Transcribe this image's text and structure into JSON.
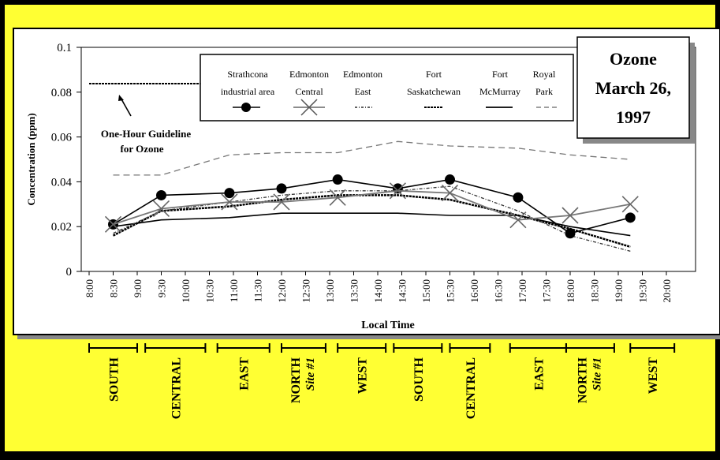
{
  "title_box": {
    "line1": "Ozone",
    "line2": "March  26,",
    "line3": "1997"
  },
  "guideline": {
    "label_line1": "One-Hour Guideline",
    "label_line2": "for Ozone",
    "value": 0.082
  },
  "legend_entries": [
    {
      "line1": "Strathcona",
      "line2": "industrial area"
    },
    {
      "line1": "Edmonton",
      "line2": "Central"
    },
    {
      "line1": "Edmonton",
      "line2": "East"
    },
    {
      "line1": "Fort",
      "line2": "Saskatchewan"
    },
    {
      "line1": "Fort",
      "line2": "McMurray"
    },
    {
      "line1": "Royal",
      "line2": "Park"
    }
  ],
  "chart_data": {
    "type": "line",
    "ylabel": "Concentration (ppm)",
    "xlabel": "Local Time",
    "ylim": [
      0,
      0.1
    ],
    "yticks": [
      0,
      0.02,
      0.04,
      0.06,
      0.08,
      0.1
    ],
    "ytick_labels": [
      "0",
      "0.02",
      "0.04",
      "0.06",
      "0.08",
      "0.1"
    ],
    "xticks": [
      "8:00",
      "8:30",
      "9:00",
      "9:30",
      "10:00",
      "10:30",
      "11:00",
      "11:30",
      "12:00",
      "12:30",
      "13:00",
      "13:30",
      "14:00",
      "14:30",
      "15:00",
      "15:30",
      "16:00",
      "16:30",
      "17:00",
      "17:30",
      "18:00",
      "18:30",
      "19:00",
      "19:30",
      "20:00"
    ],
    "series": [
      {
        "name": "Strathcona industrial area",
        "x": [
          "8:30",
          "9:30",
          "10:55",
          "12:00",
          "13:10",
          "14:25",
          "15:30",
          "16:55",
          "18:00",
          "19:15"
        ],
        "values": [
          0.021,
          0.034,
          0.035,
          0.037,
          0.041,
          0.037,
          0.041,
          0.033,
          0.017,
          0.024
        ]
      },
      {
        "name": "Edmonton Central",
        "x": [
          "8:30",
          "9:30",
          "10:55",
          "12:00",
          "13:10",
          "14:25",
          "15:30",
          "16:55",
          "18:00",
          "19:15"
        ],
        "values": [
          0.021,
          0.028,
          0.031,
          0.031,
          0.033,
          0.036,
          0.035,
          0.023,
          0.025,
          0.03
        ]
      },
      {
        "name": "Edmonton East",
        "x": [
          "8:30",
          "9:30",
          "10:55",
          "12:00",
          "13:10",
          "14:25",
          "15:30",
          "16:55",
          "18:00",
          "19:15"
        ],
        "values": [
          0.017,
          0.027,
          0.031,
          0.034,
          0.036,
          0.036,
          0.038,
          0.027,
          0.016,
          0.009
        ]
      },
      {
        "name": "Fort Saskatchewan",
        "x": [
          "8:30",
          "9:30",
          "10:55",
          "12:00",
          "13:10",
          "14:25",
          "15:30",
          "16:55",
          "18:00",
          "19:15"
        ],
        "values": [
          0.016,
          0.027,
          0.029,
          0.032,
          0.034,
          0.034,
          0.032,
          0.025,
          0.019,
          0.011
        ]
      },
      {
        "name": "Fort McMurray",
        "x": [
          "8:30",
          "9:30",
          "10:55",
          "12:00",
          "13:10",
          "14:25",
          "15:30",
          "16:55",
          "18:00",
          "19:15"
        ],
        "values": [
          0.02,
          0.023,
          0.024,
          0.026,
          0.026,
          0.026,
          0.025,
          0.025,
          0.02,
          0.016
        ]
      },
      {
        "name": "Royal Park",
        "x": [
          "8:30",
          "9:30",
          "10:55",
          "12:00",
          "13:10",
          "14:25",
          "15:30",
          "16:55",
          "18:00",
          "19:15"
        ],
        "values": [
          0.043,
          0.043,
          0.052,
          0.053,
          0.053,
          0.058,
          0.056,
          0.055,
          0.052,
          0.05
        ]
      }
    ],
    "regions": [
      {
        "label": "SOUTH",
        "start": "8:00",
        "end": "9:00",
        "site": ""
      },
      {
        "label": "CENTRAL",
        "start": "9:10",
        "end": "10:25",
        "site": ""
      },
      {
        "label": "EAST",
        "start": "10:40",
        "end": "11:45",
        "site": ""
      },
      {
        "label": "NORTH",
        "start": "12:00",
        "end": "12:55",
        "site": "Site #1"
      },
      {
        "label": "WEST",
        "start": "13:10",
        "end": "14:10",
        "site": ""
      },
      {
        "label": "SOUTH",
        "start": "14:20",
        "end": "15:20",
        "site": ""
      },
      {
        "label": "CENTRAL",
        "start": "15:30",
        "end": "16:20",
        "site": ""
      },
      {
        "label": "EAST",
        "start": "16:45",
        "end": "17:55",
        "site": ""
      },
      {
        "label": "NORTH",
        "start": "17:55",
        "end": "18:55",
        "site": "Site #1"
      },
      {
        "label": "WEST",
        "start": "19:15",
        "end": "20:10",
        "site": ""
      }
    ]
  }
}
